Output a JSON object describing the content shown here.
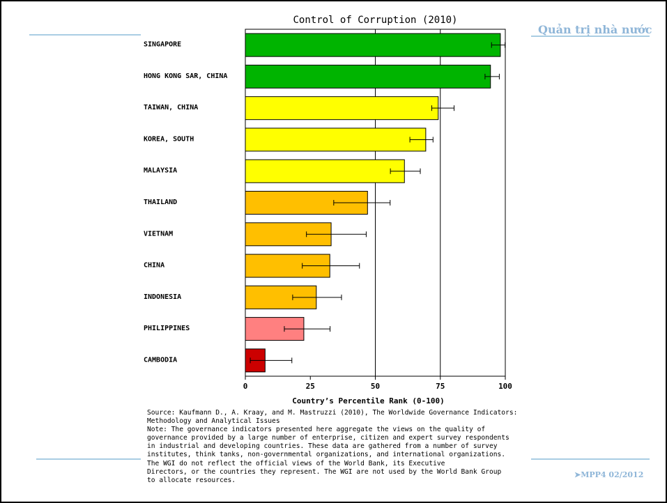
{
  "header": {
    "label": "Quản trị nhà nước"
  },
  "footer": {
    "label": "➤MPP4 02/2012"
  },
  "chart_data": {
    "type": "bar",
    "orientation": "horizontal",
    "title": "Control of Corruption (2010)",
    "xlabel": "Country’s Percentile Rank (0-100)",
    "ylabel": "",
    "xlim": [
      0,
      100
    ],
    "xticks": [
      0,
      25,
      50,
      75,
      100
    ],
    "grid": "vertical lines at 50 and 75",
    "categories": [
      "SINGAPORE",
      "HONG KONG SAR, CHINA",
      "TAIWAN, CHINA",
      "KOREA, SOUTH",
      "MALAYSIA",
      "THAILAND",
      "VIETNAM",
      "CHINA",
      "INDONESIA",
      "PHILIPPINES",
      "CAMBODIA"
    ],
    "values": [
      98.1,
      94.3,
      74.2,
      69.4,
      61.2,
      47.0,
      33.0,
      32.5,
      27.3,
      22.5,
      7.6
    ],
    "error_low": [
      94.7,
      92.2,
      71.7,
      63.3,
      55.8,
      34.0,
      23.5,
      21.9,
      18.2,
      15.0,
      1.9
    ],
    "error_high": [
      99.9,
      97.7,
      80.3,
      72.2,
      67.3,
      55.7,
      46.5,
      43.9,
      37.0,
      32.6,
      17.9
    ],
    "colors": [
      "#00b400",
      "#00b400",
      "#ffff00",
      "#ffff00",
      "#ffff00",
      "#ffbf00",
      "#ffbf00",
      "#ffbf00",
      "#ffbf00",
      "#ff8080",
      "#cc0000"
    ]
  },
  "notes": {
    "lines": [
      "Source: Kaufmann D., A. Kraay, and M. Mastruzzi (2010), The Worldwide Governance Indicators:",
      "Methodology and Analytical Issues",
      "Note: The governance indicators presented here aggregate the views on the quality of",
      "governance provided by a large number of enterprise, citizen and expert survey respondents",
      "in industrial and developing countries. These data are gathered from a number of survey",
      "institutes, think tanks, non-governmental organizations, and international organizations.",
      "The WGI do not reflect the official views of the World Bank, its Executive",
      "Directors, or the countries they represent. The WGI are not used by the World Bank Group",
      "to allocate resources."
    ]
  }
}
